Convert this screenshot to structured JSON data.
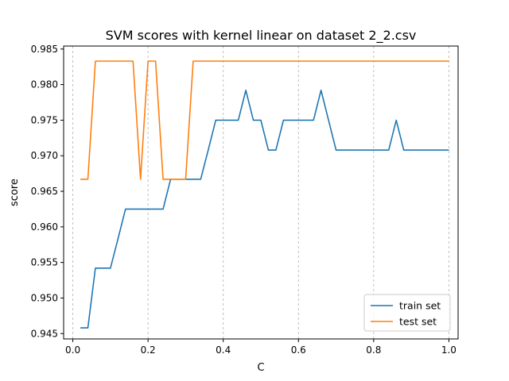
{
  "chart_data": {
    "type": "line",
    "title": "SVM scores with kernel linear on dataset 2_2.csv",
    "xlabel": "C",
    "ylabel": "score",
    "xlim": [
      -0.0245,
      1.0245
    ],
    "ylim": [
      0.94425,
      0.98542
    ],
    "xticks": [
      0.0,
      0.2,
      0.4,
      0.6,
      0.8,
      1.0
    ],
    "xtick_labels": [
      "0.0",
      "0.2",
      "0.4",
      "0.6",
      "0.8",
      "1.0"
    ],
    "yticks": [
      0.945,
      0.95,
      0.955,
      0.96,
      0.965,
      0.97,
      0.975,
      0.98,
      0.985
    ],
    "ytick_labels": [
      "0.945",
      "0.950",
      "0.955",
      "0.960",
      "0.965",
      "0.970",
      "0.975",
      "0.980",
      "0.985"
    ],
    "grid": "vertical dashed lines at x ticks",
    "legend_position": "lower-right",
    "x": [
      0.02,
      0.04,
      0.06,
      0.08,
      0.1,
      0.12,
      0.14,
      0.16,
      0.18,
      0.2,
      0.22,
      0.24,
      0.26,
      0.28,
      0.3,
      0.32,
      0.34,
      0.36,
      0.38,
      0.4,
      0.42,
      0.44,
      0.46,
      0.48,
      0.5,
      0.52,
      0.54,
      0.56,
      0.58,
      0.6,
      0.62,
      0.64,
      0.66,
      0.68,
      0.7,
      0.72,
      0.74,
      0.76,
      0.78,
      0.8,
      0.82,
      0.84,
      0.86,
      0.88,
      0.9,
      0.92,
      0.94,
      0.96,
      0.98,
      1.0
    ],
    "series": [
      {
        "name": "train set",
        "color": "#1f77b4",
        "values": [
          0.9458,
          0.9458,
          0.9542,
          0.9542,
          0.9542,
          0.9583,
          0.9625,
          0.9625,
          0.9625,
          0.9625,
          0.9625,
          0.9625,
          0.9667,
          0.9667,
          0.9667,
          0.9667,
          0.9667,
          0.9708,
          0.975,
          0.975,
          0.975,
          0.975,
          0.9792,
          0.975,
          0.975,
          0.9708,
          0.9708,
          0.975,
          0.975,
          0.975,
          0.975,
          0.975,
          0.9792,
          0.975,
          0.9708,
          0.9708,
          0.9708,
          0.9708,
          0.9708,
          0.9708,
          0.9708,
          0.9708,
          0.975,
          0.9708,
          0.9708,
          0.9708,
          0.9708,
          0.9708,
          0.9708,
          0.9708
        ]
      },
      {
        "name": "test set",
        "color": "#ff7f0e",
        "values": [
          0.9667,
          0.9667,
          0.9833,
          0.9833,
          0.9833,
          0.9833,
          0.9833,
          0.9833,
          0.9667,
          0.9833,
          0.9833,
          0.9667,
          0.9667,
          0.9667,
          0.9667,
          0.9833,
          0.9833,
          0.9833,
          0.9833,
          0.9833,
          0.9833,
          0.9833,
          0.9833,
          0.9833,
          0.9833,
          0.9833,
          0.9833,
          0.9833,
          0.9833,
          0.9833,
          0.9833,
          0.9833,
          0.9833,
          0.9833,
          0.9833,
          0.9833,
          0.9833,
          0.9833,
          0.9833,
          0.9833,
          0.9833,
          0.9833,
          0.9833,
          0.9833,
          0.9833,
          0.9833,
          0.9833,
          0.9833,
          0.9833,
          0.9833
        ]
      }
    ]
  }
}
